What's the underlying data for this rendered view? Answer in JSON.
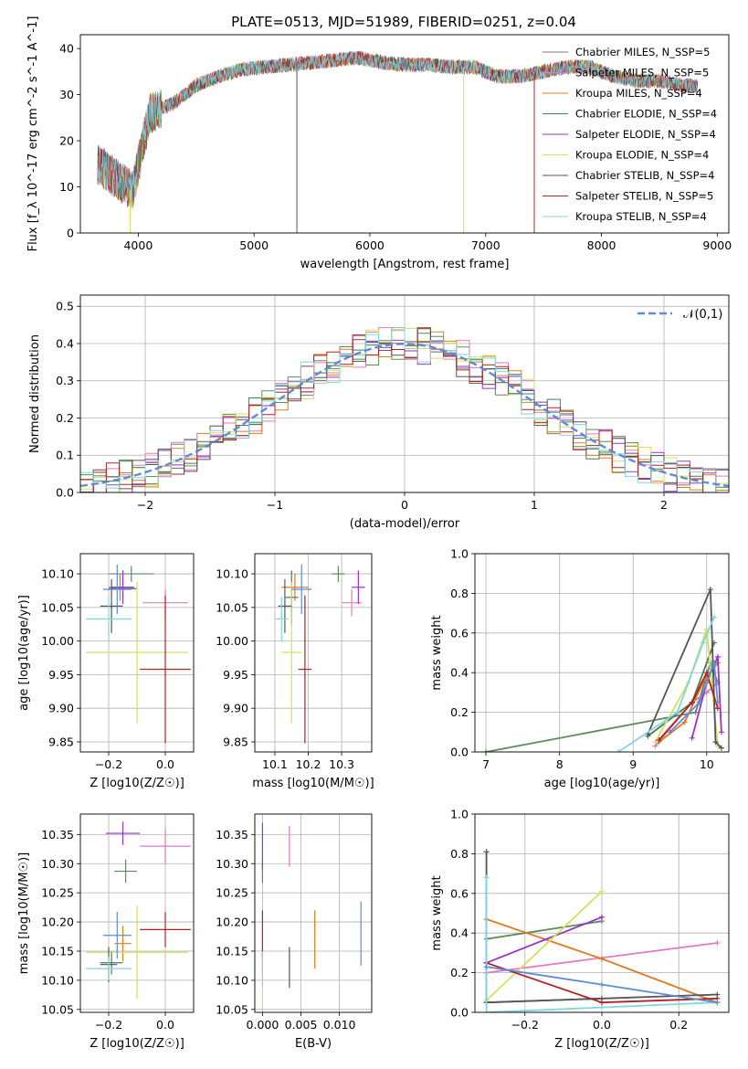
{
  "figure": {
    "title": "PLATE=0513, MJD=51989, FIBERID=0251, z=0.04"
  },
  "chart_data": [
    {
      "type": "line",
      "panel": "spectrum",
      "title": "PLATE=0513, MJD=51989, FIBERID=0251, z=0.04",
      "xlabel": "wavelength [Angstrom, rest frame]",
      "ylabel": "Flux [f_λ 10^-17 erg cm^-2 s^-1 A^-1]",
      "xlim": [
        3500,
        9100
      ],
      "ylim": [
        0,
        43
      ],
      "xticks": [
        4000,
        5000,
        6000,
        7000,
        8000,
        9000
      ],
      "yticks": [
        0,
        10,
        20,
        30,
        40
      ],
      "series": [
        {
          "name": "Chabrier MILES, N_SSP=5",
          "color": "#5b8c5a"
        },
        {
          "name": "Salpeter MILES, N_SSP=5",
          "color": "#e377c2"
        },
        {
          "name": "Kroupa MILES, N_SSP=4",
          "color": "#e07b1e"
        },
        {
          "name": "Chabrier ELODIE, N_SSP=4",
          "color": "#4c7a54"
        },
        {
          "name": "Salpeter ELODIE, N_SSP=4",
          "color": "#9932cc"
        },
        {
          "name": "Kroupa ELODIE, N_SSP=4",
          "color": "#cfe35a"
        },
        {
          "name": "Chabrier STELIB, N_SSP=4",
          "color": "#555555"
        },
        {
          "name": "Salpeter STELIB, N_SSP=5",
          "color": "#b22222"
        },
        {
          "name": "Kroupa STELIB, N_SSP=4",
          "color": "#7fd6e0"
        }
      ],
      "spectrum_continuum": {
        "wavelength": [
          3650,
          3800,
          3950,
          4100,
          4300,
          4500,
          4700,
          4900,
          5100,
          5300,
          5500,
          5700,
          5900,
          6100,
          6300,
          6500,
          6700,
          6900,
          7100,
          7300,
          7500,
          7700,
          7900,
          8100,
          8300,
          8500,
          8700,
          8830
        ],
        "flux": [
          15,
          12,
          9,
          26,
          28,
          32,
          34,
          35.5,
          36,
          36.5,
          37,
          37.5,
          38,
          37,
          36.5,
          36.5,
          36,
          36,
          34,
          34,
          35,
          36,
          36,
          34,
          33,
          33,
          32,
          32
        ]
      },
      "drops": [
        {
          "wavelength": 3930,
          "color": "#cfe35a"
        },
        {
          "wavelength": 5370,
          "color": "#555555"
        },
        {
          "wavelength": 6810,
          "color": "#cfe35a"
        },
        {
          "wavelength": 7420,
          "color": "#b22222"
        }
      ]
    },
    {
      "type": "histogram",
      "panel": "residuals",
      "xlabel": "(data-model)/error",
      "ylabel": "Normed distribution",
      "xlim": [
        -2.5,
        2.5
      ],
      "ylim": [
        0,
        0.53
      ],
      "xticks": [
        -2,
        -1,
        0,
        1,
        2
      ],
      "yticks": [
        0.0,
        0.1,
        0.2,
        0.3,
        0.4,
        0.5
      ],
      "grid": true,
      "reference_curve": {
        "label": "𝒩(0,1)",
        "color": "#5b8bd9",
        "style": "dashed"
      },
      "legend_position": "top-right",
      "bin_width": 0.1
    },
    {
      "type": "scatter",
      "panel": "age_vs_Z",
      "xlabel": "Z [log10(Z/Z☉)]",
      "ylabel": "age [log10(age/yr)]",
      "xlim": [
        -0.3,
        0.1
      ],
      "ylim": [
        9.835,
        10.13
      ],
      "xticks": [
        -0.2,
        0.0
      ],
      "yticks": [
        9.85,
        9.9,
        9.95,
        10.0,
        10.05,
        10.1
      ],
      "points": [
        {
          "x": -0.12,
          "y": 10.1,
          "xerr": 0.08,
          "yerr": 0.012,
          "color": "#5b8c5a"
        },
        {
          "x": 0.0,
          "y": 10.057,
          "xerr": 0.08,
          "yerr": 0.02,
          "color": "#e377c2"
        },
        {
          "x": -0.16,
          "y": 10.08,
          "xerr": 0.04,
          "yerr": 0.02,
          "color": "#e07b1e"
        },
        {
          "x": -0.15,
          "y": 10.078,
          "xerr": 0.05,
          "yerr": 0.015,
          "color": "#4c7a54"
        },
        {
          "x": -0.15,
          "y": 10.08,
          "xerr": 0.04,
          "yerr": 0.025,
          "color": "#9932cc"
        },
        {
          "x": -0.1,
          "y": 9.983,
          "xerr": 0.18,
          "yerr": 0.105,
          "color": "#cfe35a"
        },
        {
          "x": -0.19,
          "y": 10.052,
          "xerr": 0.04,
          "yerr": 0.04,
          "color": "#555555"
        },
        {
          "x": 0.0,
          "y": 9.958,
          "xerr": 0.09,
          "yerr": 0.11,
          "color": "#b22222"
        },
        {
          "x": -0.2,
          "y": 10.033,
          "xerr": 0.08,
          "yerr": 0.033,
          "color": "#7fd6e0"
        },
        {
          "x": -0.17,
          "y": 10.077,
          "xerr": 0.05,
          "yerr": 0.037,
          "color": "#5b8bd9"
        }
      ]
    },
    {
      "type": "scatter",
      "panel": "age_vs_mass",
      "xlabel": "mass [log10(M/M☉)]",
      "ylabel": "",
      "xlim": [
        10.04,
        10.39
      ],
      "ylim": [
        9.835,
        10.13
      ],
      "xticks": [
        10.1,
        10.2,
        10.3
      ],
      "yticks": [
        9.85,
        9.9,
        9.95,
        10.0,
        10.05,
        10.1
      ],
      "points": [
        {
          "x": 10.29,
          "y": 10.1,
          "xerr": 0.02,
          "yerr": 0.012,
          "color": "#5b8c5a"
        },
        {
          "x": 10.33,
          "y": 10.057,
          "xerr": 0.03,
          "yerr": 0.02,
          "color": "#e377c2"
        },
        {
          "x": 10.16,
          "y": 10.08,
          "xerr": 0.04,
          "yerr": 0.02,
          "color": "#e07b1e"
        },
        {
          "x": 10.15,
          "y": 10.065,
          "xerr": 0.02,
          "yerr": 0.04,
          "color": "#4c7a54"
        },
        {
          "x": 10.35,
          "y": 10.08,
          "xerr": 0.02,
          "yerr": 0.025,
          "color": "#9932cc"
        },
        {
          "x": 10.15,
          "y": 9.983,
          "xerr": 0.03,
          "yerr": 0.105,
          "color": "#cfe35a"
        },
        {
          "x": 10.13,
          "y": 10.052,
          "xerr": 0.02,
          "yerr": 0.04,
          "color": "#555555"
        },
        {
          "x": 10.19,
          "y": 9.958,
          "xerr": 0.02,
          "yerr": 0.11,
          "color": "#b22222"
        },
        {
          "x": 10.12,
          "y": 10.033,
          "xerr": 0.02,
          "yerr": 0.033,
          "color": "#7fd6e0"
        },
        {
          "x": 10.18,
          "y": 10.077,
          "xerr": 0.03,
          "yerr": 0.037,
          "color": "#5b8bd9"
        }
      ]
    },
    {
      "type": "line",
      "panel": "weight_vs_age",
      "xlabel": "age [log10(age/yr)]",
      "ylabel": "mass weight",
      "xlim": [
        6.85,
        10.3
      ],
      "ylim": [
        0,
        1.0
      ],
      "xticks": [
        7,
        8,
        9,
        10
      ],
      "yticks": [
        0.0,
        0.2,
        0.4,
        0.6,
        0.8,
        1.0
      ],
      "grid": true,
      "series": [
        {
          "color": "#5b8c5a",
          "x": [
            7.0,
            9.85,
            10.05,
            10.15
          ],
          "y": [
            0.0,
            0.2,
            0.45,
            0.35
          ]
        },
        {
          "color": "#e377c2",
          "x": [
            9.3,
            9.8,
            10.0,
            10.15
          ],
          "y": [
            0.03,
            0.25,
            0.3,
            0.35
          ]
        },
        {
          "color": "#e07b1e",
          "x": [
            9.35,
            9.7,
            9.95,
            10.15
          ],
          "y": [
            0.05,
            0.15,
            0.35,
            0.45
          ]
        },
        {
          "color": "#4c7a54",
          "x": [
            9.2,
            9.8,
            10.1
          ],
          "y": [
            0.08,
            0.25,
            0.55
          ]
        },
        {
          "color": "#9932cc",
          "x": [
            9.8,
            10.0,
            10.15,
            10.2
          ],
          "y": [
            0.07,
            0.35,
            0.48,
            0.1
          ]
        },
        {
          "color": "#cfe35a",
          "x": [
            9.3,
            9.75,
            10.0,
            10.15
          ],
          "y": [
            0.05,
            0.35,
            0.62,
            0.03
          ]
        },
        {
          "color": "#555555",
          "x": [
            9.2,
            10.05,
            10.12,
            10.2
          ],
          "y": [
            0.09,
            0.82,
            0.05,
            0.02
          ]
        },
        {
          "color": "#b22222",
          "x": [
            9.35,
            9.8,
            10.0,
            10.15
          ],
          "y": [
            0.06,
            0.25,
            0.4,
            0.22
          ]
        },
        {
          "color": "#7fd6e0",
          "x": [
            8.8,
            9.6,
            9.95,
            10.1
          ],
          "y": [
            0.0,
            0.2,
            0.55,
            0.68
          ]
        },
        {
          "color": "#5b8bd9",
          "x": [
            9.5,
            9.9,
            10.1,
            10.15
          ],
          "y": [
            0.1,
            0.25,
            0.45,
            0.25
          ]
        }
      ]
    },
    {
      "type": "scatter",
      "panel": "mass_vs_Z",
      "xlabel": "Z [log10(Z/Z☉)]",
      "ylabel": "mass [log10(M/M☉)]",
      "xlim": [
        -0.3,
        0.1
      ],
      "ylim": [
        10.045,
        10.385
      ],
      "xticks": [
        -0.2,
        0.0
      ],
      "yticks": [
        10.05,
        10.1,
        10.15,
        10.2,
        10.25,
        10.3,
        10.35
      ],
      "points": [
        {
          "x": -0.14,
          "y": 10.287,
          "xerr": 0.04,
          "yerr": 0.02,
          "color": "#5b8c5a"
        },
        {
          "x": 0.0,
          "y": 10.33,
          "xerr": 0.09,
          "yerr": 0.03,
          "color": "#e377c2"
        },
        {
          "x": -0.15,
          "y": 10.163,
          "xerr": 0.03,
          "yerr": 0.03,
          "color": "#e07b1e"
        },
        {
          "x": -0.19,
          "y": 10.13,
          "xerr": 0.04,
          "yerr": 0.02,
          "color": "#4c7a54"
        },
        {
          "x": -0.15,
          "y": 10.352,
          "xerr": 0.06,
          "yerr": 0.02,
          "color": "#9932cc"
        },
        {
          "x": -0.1,
          "y": 10.148,
          "xerr": 0.18,
          "yerr": 0.08,
          "color": "#cfe35a"
        },
        {
          "x": -0.2,
          "y": 10.127,
          "xerr": 0.03,
          "yerr": 0.03,
          "color": "#555555"
        },
        {
          "x": 0.0,
          "y": 10.187,
          "xerr": 0.09,
          "yerr": 0.03,
          "color": "#b22222"
        },
        {
          "x": -0.2,
          "y": 10.12,
          "xerr": 0.08,
          "yerr": 0.02,
          "color": "#7fd6e0"
        },
        {
          "x": -0.17,
          "y": 10.177,
          "xerr": 0.05,
          "yerr": 0.04,
          "color": "#5b8bd9"
        }
      ]
    },
    {
      "type": "scatter",
      "panel": "mass_vs_EBV",
      "xlabel": "E(B-V)",
      "ylabel": "",
      "xlim": [
        -0.001,
        0.0142
      ],
      "ylim": [
        10.045,
        10.385
      ],
      "xticks": [
        0.0,
        0.005,
        0.01
      ],
      "xticklabels": [
        "0.000",
        "0.005",
        "0.010"
      ],
      "yticks": [
        10.05,
        10.1,
        10.15,
        10.2,
        10.25,
        10.3,
        10.35
      ],
      "points": [
        {
          "x": 0.0,
          "y": 10.287,
          "yerr": 0.02,
          "color": "#5b8c5a"
        },
        {
          "x": 0.0035,
          "y": 10.33,
          "yerr": 0.035,
          "color": "#e377c2"
        },
        {
          "x": 0.0068,
          "y": 10.17,
          "yerr": 0.05,
          "color": "#e07b1e"
        },
        {
          "x": 0.0,
          "y": 10.13,
          "yerr": 0.02,
          "color": "#4c7a54"
        },
        {
          "x": 0.0,
          "y": 10.33,
          "yerr": 0.04,
          "color": "#9932cc"
        },
        {
          "x": 0.0,
          "y": 10.07,
          "yerr": 0.02,
          "color": "#cfe35a"
        },
        {
          "x": 0.0035,
          "y": 10.122,
          "yerr": 0.035,
          "color": "#555555"
        },
        {
          "x": 0.0,
          "y": 10.18,
          "yerr": 0.04,
          "color": "#b22222"
        },
        {
          "x": 0.0,
          "y": 10.12,
          "yerr": 0.03,
          "color": "#7fd6e0"
        },
        {
          "x": 0.0128,
          "y": 10.18,
          "yerr": 0.055,
          "color": "#5b8bd9"
        }
      ]
    },
    {
      "type": "line",
      "panel": "weight_vs_Z",
      "xlabel": "Z [log10(Z/Z☉)]",
      "ylabel": "mass weight",
      "xlim": [
        -0.33,
        0.33
      ],
      "ylim": [
        0,
        1.0
      ],
      "xticks": [
        -0.2,
        0.0,
        0.2
      ],
      "yticks": [
        0.0,
        0.2,
        0.4,
        0.6,
        0.8,
        1.0
      ],
      "grid": true,
      "series": [
        {
          "color": "#5b8c5a",
          "x": [
            -0.3,
            0.0
          ],
          "y": [
            0.37,
            0.46
          ]
        },
        {
          "color": "#e377c2",
          "x": [
            -0.3,
            0.3
          ],
          "y": [
            0.2,
            0.35
          ]
        },
        {
          "color": "#e07b1e",
          "x": [
            -0.3,
            0.0,
            0.3
          ],
          "y": [
            0.47,
            0.27,
            0.05
          ]
        },
        {
          "color": "#4c7a54",
          "x": [
            -0.3,
            0.0
          ],
          "y": [
            0.05,
            0.07
          ]
        },
        {
          "color": "#9932cc",
          "x": [
            -0.3,
            0.0
          ],
          "y": [
            0.25,
            0.48
          ]
        },
        {
          "color": "#cfe35a",
          "x": [
            -0.3,
            0.0
          ],
          "y": [
            0.06,
            0.61
          ]
        },
        {
          "color": "#555555",
          "x": [
            -0.3,
            -0.3,
            0.3
          ],
          "y": [
            0.81,
            0.05,
            0.09
          ]
        },
        {
          "color": "#b22222",
          "x": [
            -0.3,
            0.0,
            0.3
          ],
          "y": [
            0.25,
            0.05,
            0.07
          ]
        },
        {
          "color": "#7fd6e0",
          "x": [
            -0.3,
            -0.3,
            0.3
          ],
          "y": [
            0.68,
            0.0,
            0.05
          ]
        },
        {
          "color": "#5b8bd9",
          "x": [
            -0.3,
            0.0,
            0.3
          ],
          "y": [
            0.23,
            0.14,
            0.05
          ]
        }
      ]
    }
  ]
}
